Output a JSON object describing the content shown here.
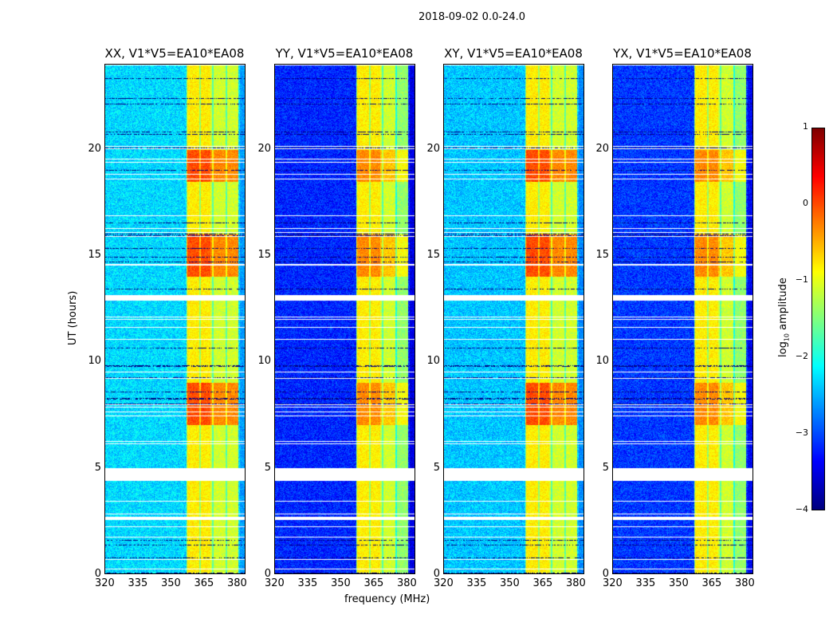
{
  "suptitle": "2018-09-02 0.0-24.0",
  "chart_data": {
    "type": "heatmap",
    "panels": [
      {
        "title": "XX, V1*V5=EA10*EA08",
        "baseline_log10": -2.3
      },
      {
        "title": "YY, V1*V5=EA10*EA08",
        "baseline_log10": -3.2
      },
      {
        "title": "XY, V1*V5=EA10*EA08",
        "baseline_log10": -2.4
      },
      {
        "title": "YX, V1*V5=EA10*EA08",
        "baseline_log10": -3.1
      }
    ],
    "xlabel": "frequency (MHz)",
    "ylabel": "UT (hours)",
    "xlim": [
      320,
      384
    ],
    "ylim": [
      0,
      24
    ],
    "xticks": [
      "320",
      "335",
      "350",
      "365",
      "380"
    ],
    "yticks": [
      "0",
      "5",
      "10",
      "15",
      "20"
    ],
    "signal_band_mhz": [
      357,
      381
    ],
    "flagged_hours": [
      [
        2.55,
        2.7
      ],
      [
        4.4,
        5.0
      ],
      [
        12.9,
        13.15
      ]
    ],
    "colorbar": {
      "label": "log10 amplitude",
      "label_base": "log",
      "label_sub": "10",
      "label_rest": " amplitude",
      "range": [
        -4,
        1
      ],
      "ticks": [
        "1",
        "0",
        "−1",
        "−2",
        "−3",
        "−4"
      ],
      "colormap": "jet"
    }
  }
}
